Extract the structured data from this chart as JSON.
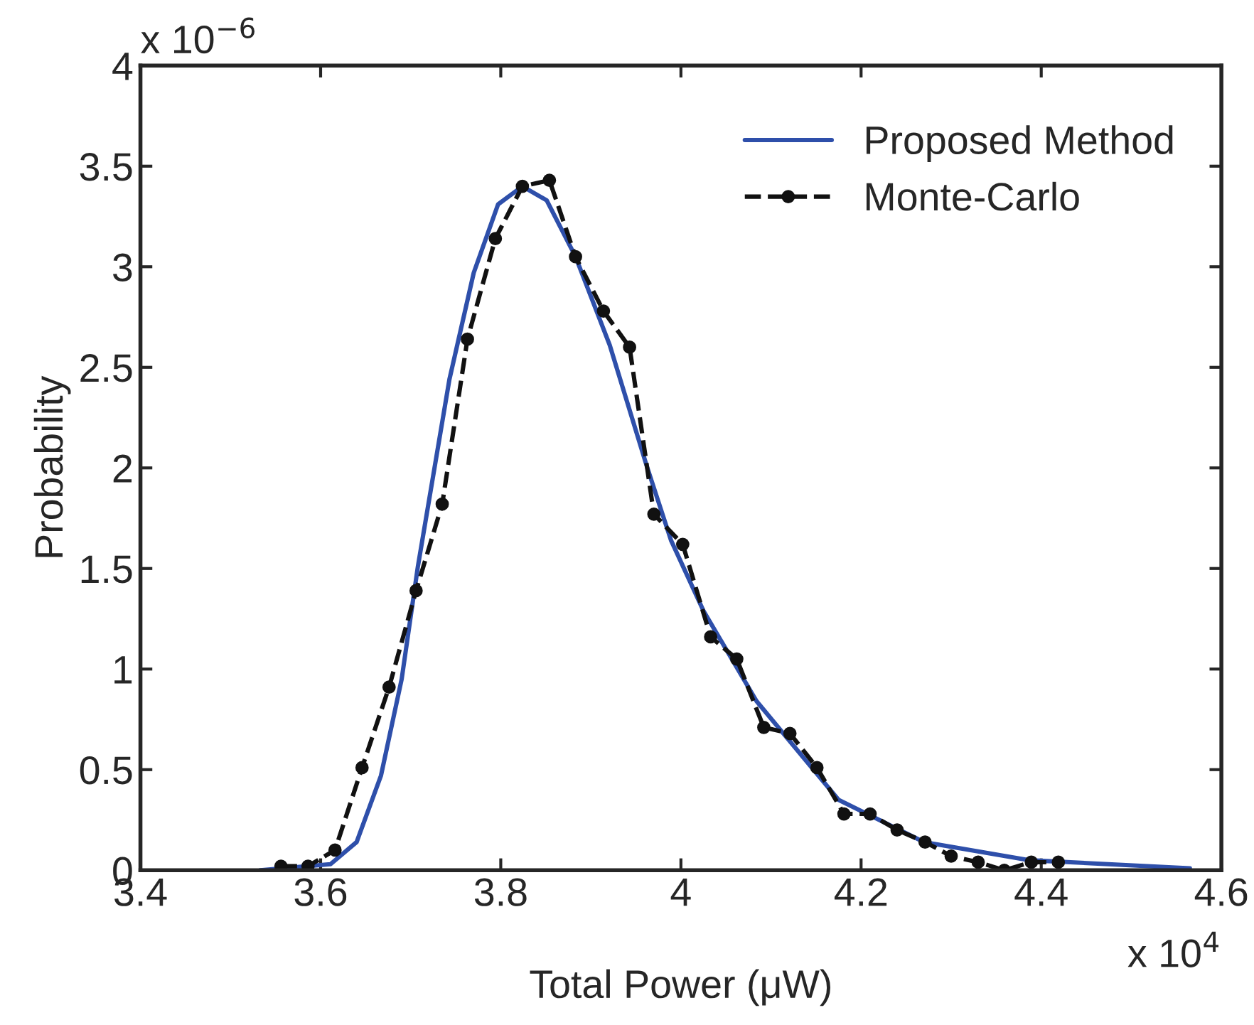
{
  "chart_data": {
    "type": "line",
    "xlabel": "Total Power (μW)",
    "ylabel": "Probability",
    "xlim": [
      3.4,
      4.6
    ],
    "xticks": [
      3.4,
      3.6,
      3.8,
      4,
      4.2,
      4.4,
      4.6
    ],
    "ylim": [
      0,
      4
    ],
    "yticks": [
      0,
      0.5,
      1,
      1.5,
      2,
      2.5,
      3,
      3.5,
      4
    ],
    "grid": false,
    "legend": "top right",
    "annotations": [
      "x 10$^{−6}$",
      "x 10$^{4}$"
    ],
    "series": [
      {
        "name": "Proposed Method",
        "color": "#2e4faa",
        "line_style": "solid",
        "marker": "none",
        "x": [
          3.533,
          3.611,
          3.64,
          3.667,
          3.69,
          3.708,
          3.743,
          3.77,
          3.797,
          3.824,
          3.851,
          3.883,
          3.921,
          3.962,
          3.989,
          4.025,
          4.084,
          4.175,
          4.27,
          4.386,
          4.565
        ],
        "values": [
          0,
          0.03,
          0.14,
          0.47,
          0.95,
          1.51,
          2.44,
          2.97,
          3.31,
          3.4,
          3.33,
          3.05,
          2.61,
          2.01,
          1.64,
          1.29,
          0.84,
          0.35,
          0.14,
          0.05,
          0.01
        ]
      },
      {
        "name": "Monte-Carlo",
        "color": "#111111",
        "line_style": "dashed",
        "marker": "circle",
        "x": [
          3.556,
          3.586,
          3.616,
          3.646,
          3.676,
          3.706,
          3.735,
          3.763,
          3.794,
          3.824,
          3.854,
          3.883,
          3.914,
          3.943,
          3.97,
          4.002,
          4.033,
          4.062,
          4.092,
          4.121,
          4.151,
          4.181,
          4.21,
          4.24,
          4.271,
          4.3,
          4.33,
          4.359,
          4.389,
          4.419
        ],
        "values": [
          0.02,
          0.02,
          0.1,
          0.51,
          0.91,
          1.39,
          1.82,
          2.64,
          3.14,
          3.4,
          3.43,
          3.05,
          2.78,
          2.6,
          1.77,
          1.62,
          1.16,
          1.05,
          0.71,
          0.68,
          0.51,
          0.28,
          0.28,
          0.2,
          0.14,
          0.07,
          0.04,
          0.0,
          0.04,
          0.04
        ]
      }
    ]
  }
}
